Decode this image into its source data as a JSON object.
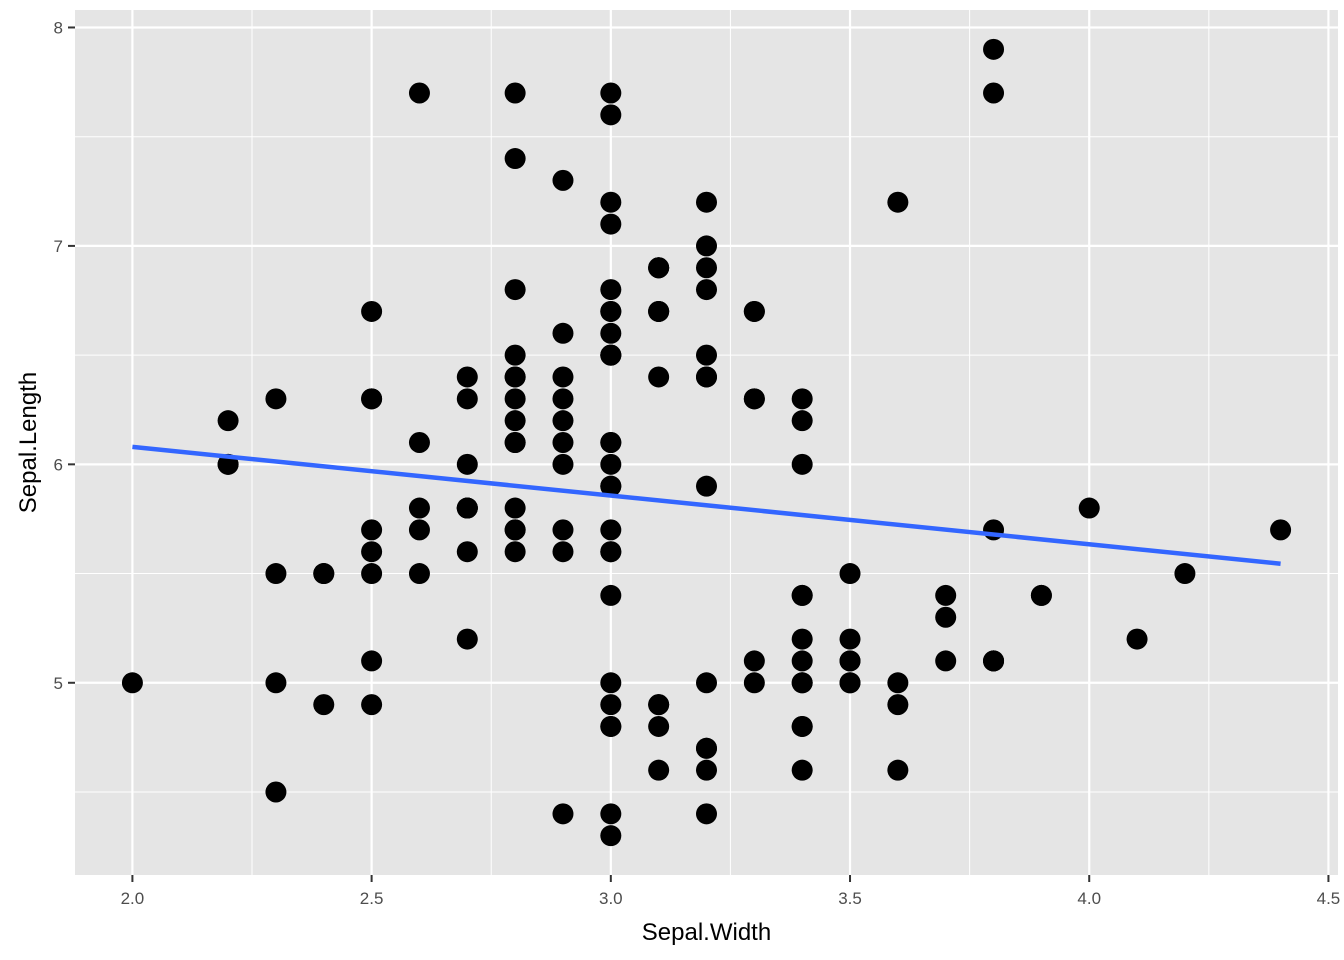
{
  "chart_data": {
    "type": "scatter",
    "title": "",
    "xlabel": "Sepal.Width",
    "ylabel": "Sepal.Length",
    "xlim": [
      1.88,
      4.52
    ],
    "ylim": [
      4.12,
      8.08
    ],
    "x_ticks": [
      2.0,
      2.5,
      3.0,
      3.5,
      4.0,
      4.5
    ],
    "x_tick_labels": [
      "2.0",
      "2.5",
      "3.0",
      "3.5",
      "4.0",
      "4.5"
    ],
    "y_ticks": [
      5,
      6,
      7,
      8
    ],
    "y_tick_labels": [
      "5",
      "6",
      "7",
      "8"
    ],
    "grid": true,
    "legend": "none",
    "colors": {
      "panel": "#e5e5e5",
      "grid": "#ffffff",
      "points": "#000000",
      "fit_line": "#3366ff"
    },
    "points": [
      [
        3.5,
        5.1
      ],
      [
        3.0,
        4.9
      ],
      [
        3.2,
        4.7
      ],
      [
        3.1,
        4.6
      ],
      [
        3.6,
        5.0
      ],
      [
        3.9,
        5.4
      ],
      [
        3.4,
        4.6
      ],
      [
        3.4,
        5.0
      ],
      [
        2.9,
        4.4
      ],
      [
        3.1,
        4.9
      ],
      [
        3.7,
        5.4
      ],
      [
        3.4,
        4.8
      ],
      [
        3.0,
        4.8
      ],
      [
        3.0,
        4.3
      ],
      [
        4.0,
        5.8
      ],
      [
        4.4,
        5.7
      ],
      [
        3.9,
        5.4
      ],
      [
        3.5,
        5.1
      ],
      [
        3.8,
        5.7
      ],
      [
        3.8,
        5.1
      ],
      [
        3.4,
        5.4
      ],
      [
        3.7,
        5.1
      ],
      [
        3.6,
        4.6
      ],
      [
        3.3,
        5.1
      ],
      [
        3.4,
        4.8
      ],
      [
        3.0,
        5.0
      ],
      [
        3.4,
        5.0
      ],
      [
        3.5,
        5.2
      ],
      [
        3.4,
        5.2
      ],
      [
        3.2,
        4.7
      ],
      [
        3.1,
        4.8
      ],
      [
        3.4,
        5.4
      ],
      [
        4.1,
        5.2
      ],
      [
        4.2,
        5.5
      ],
      [
        3.1,
        4.9
      ],
      [
        3.2,
        5.0
      ],
      [
        3.5,
        5.5
      ],
      [
        3.6,
        4.9
      ],
      [
        3.0,
        4.4
      ],
      [
        3.4,
        5.1
      ],
      [
        3.5,
        5.0
      ],
      [
        2.3,
        4.5
      ],
      [
        3.2,
        4.4
      ],
      [
        3.5,
        5.0
      ],
      [
        3.8,
        5.1
      ],
      [
        3.0,
        4.8
      ],
      [
        3.8,
        5.1
      ],
      [
        3.2,
        4.6
      ],
      [
        3.7,
        5.3
      ],
      [
        3.3,
        5.0
      ],
      [
        3.2,
        7.0
      ],
      [
        3.2,
        6.4
      ],
      [
        3.1,
        6.9
      ],
      [
        2.3,
        5.5
      ],
      [
        2.8,
        6.5
      ],
      [
        2.8,
        5.7
      ],
      [
        3.3,
        6.3
      ],
      [
        2.4,
        4.9
      ],
      [
        2.9,
        6.6
      ],
      [
        2.7,
        5.2
      ],
      [
        2.0,
        5.0
      ],
      [
        3.0,
        5.9
      ],
      [
        2.2,
        6.0
      ],
      [
        2.9,
        6.1
      ],
      [
        2.9,
        5.6
      ],
      [
        3.1,
        6.7
      ],
      [
        3.0,
        5.6
      ],
      [
        2.7,
        5.8
      ],
      [
        2.2,
        6.2
      ],
      [
        2.5,
        5.6
      ],
      [
        3.2,
        5.9
      ],
      [
        2.8,
        6.1
      ],
      [
        2.5,
        6.3
      ],
      [
        2.8,
        6.1
      ],
      [
        2.9,
        6.4
      ],
      [
        3.0,
        6.6
      ],
      [
        2.8,
        6.8
      ],
      [
        3.0,
        6.7
      ],
      [
        2.9,
        6.0
      ],
      [
        2.6,
        5.7
      ],
      [
        2.4,
        5.5
      ],
      [
        2.4,
        5.5
      ],
      [
        2.7,
        5.8
      ],
      [
        2.7,
        6.0
      ],
      [
        3.0,
        5.4
      ],
      [
        3.4,
        6.0
      ],
      [
        3.1,
        6.7
      ],
      [
        2.3,
        6.3
      ],
      [
        3.0,
        5.6
      ],
      [
        2.5,
        5.5
      ],
      [
        2.6,
        5.5
      ],
      [
        3.0,
        6.1
      ],
      [
        2.6,
        5.8
      ],
      [
        2.3,
        5.0
      ],
      [
        2.7,
        5.6
      ],
      [
        3.0,
        5.7
      ],
      [
        2.9,
        5.7
      ],
      [
        2.9,
        6.2
      ],
      [
        2.5,
        5.1
      ],
      [
        2.8,
        5.7
      ],
      [
        3.3,
        6.3
      ],
      [
        2.7,
        5.8
      ],
      [
        3.0,
        7.1
      ],
      [
        2.9,
        6.3
      ],
      [
        3.0,
        6.5
      ],
      [
        3.0,
        7.6
      ],
      [
        2.5,
        4.9
      ],
      [
        2.9,
        7.3
      ],
      [
        2.5,
        6.7
      ],
      [
        3.6,
        7.2
      ],
      [
        3.2,
        6.5
      ],
      [
        2.7,
        6.4
      ],
      [
        3.0,
        6.8
      ],
      [
        2.5,
        5.7
      ],
      [
        2.8,
        5.8
      ],
      [
        3.2,
        6.4
      ],
      [
        3.0,
        6.5
      ],
      [
        3.8,
        7.7
      ],
      [
        2.6,
        7.7
      ],
      [
        2.2,
        6.0
      ],
      [
        3.2,
        6.9
      ],
      [
        2.8,
        5.6
      ],
      [
        2.8,
        7.7
      ],
      [
        2.7,
        6.3
      ],
      [
        3.3,
        6.7
      ],
      [
        3.2,
        7.2
      ],
      [
        2.8,
        6.2
      ],
      [
        3.0,
        6.1
      ],
      [
        2.8,
        6.4
      ],
      [
        3.0,
        7.2
      ],
      [
        2.8,
        7.4
      ],
      [
        3.8,
        7.9
      ],
      [
        2.8,
        6.4
      ],
      [
        2.8,
        6.3
      ],
      [
        2.6,
        6.1
      ],
      [
        3.0,
        7.7
      ],
      [
        3.4,
        6.3
      ],
      [
        3.1,
        6.4
      ],
      [
        3.0,
        6.0
      ],
      [
        3.1,
        6.9
      ],
      [
        3.1,
        6.7
      ],
      [
        3.1,
        6.9
      ],
      [
        2.7,
        5.8
      ],
      [
        3.2,
        6.8
      ],
      [
        3.3,
        6.7
      ],
      [
        3.0,
        6.7
      ],
      [
        2.5,
        6.3
      ],
      [
        3.0,
        6.5
      ],
      [
        3.4,
        6.2
      ],
      [
        3.0,
        5.9
      ]
    ],
    "fit_line": {
      "x": [
        2.0,
        4.4
      ],
      "y": [
        6.08,
        5.545
      ]
    }
  }
}
